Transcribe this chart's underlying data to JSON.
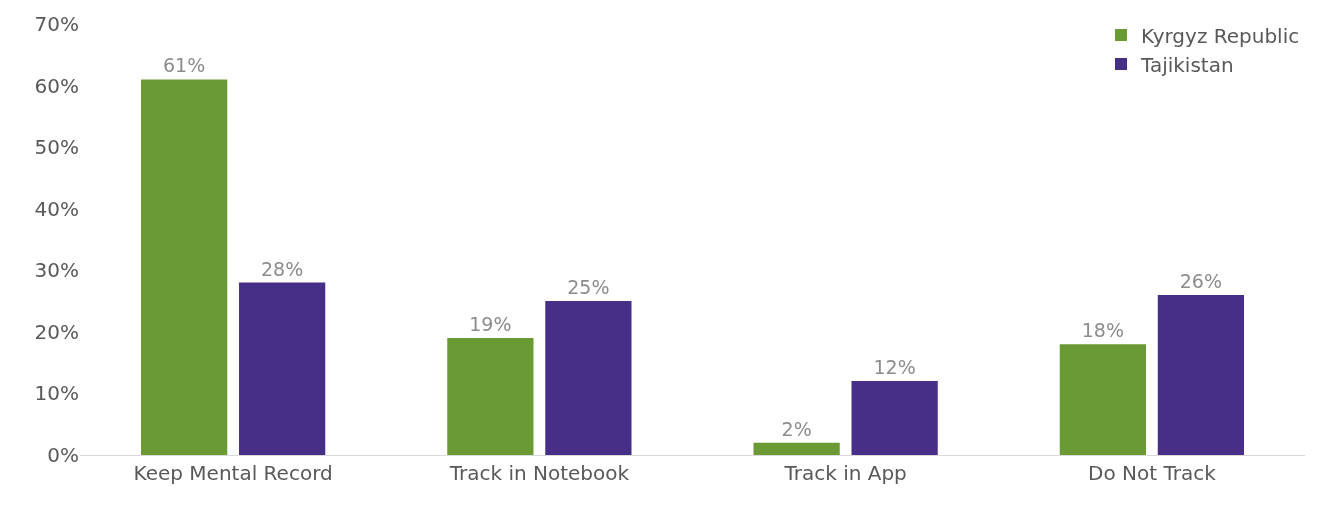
{
  "chart_data": {
    "type": "bar",
    "categories": [
      "Keep Mental Record",
      "Track in Notebook",
      "Track in App",
      "Do Not Track"
    ],
    "series": [
      {
        "name": "Kyrgyz Republic",
        "color": "#6a9a34",
        "values": [
          61,
          19,
          2,
          18
        ],
        "value_labels": [
          "61%",
          "19%",
          "2%",
          "18%"
        ]
      },
      {
        "name": "Tajikistan",
        "color": "#472f87",
        "values": [
          28,
          25,
          12,
          26
        ],
        "value_labels": [
          "28%",
          "25%",
          "12%",
          "26%"
        ]
      }
    ],
    "ylim": [
      0,
      70
    ],
    "yticks": [
      {
        "value": 0,
        "label": "0%"
      },
      {
        "value": 10,
        "label": "10%"
      },
      {
        "value": 20,
        "label": "20%"
      },
      {
        "value": 30,
        "label": "30%"
      },
      {
        "value": 40,
        "label": "40%"
      },
      {
        "value": 50,
        "label": "50%"
      },
      {
        "value": 60,
        "label": "60%"
      },
      {
        "value": 70,
        "label": "70%"
      }
    ],
    "grid": false,
    "legend": "top right"
  }
}
